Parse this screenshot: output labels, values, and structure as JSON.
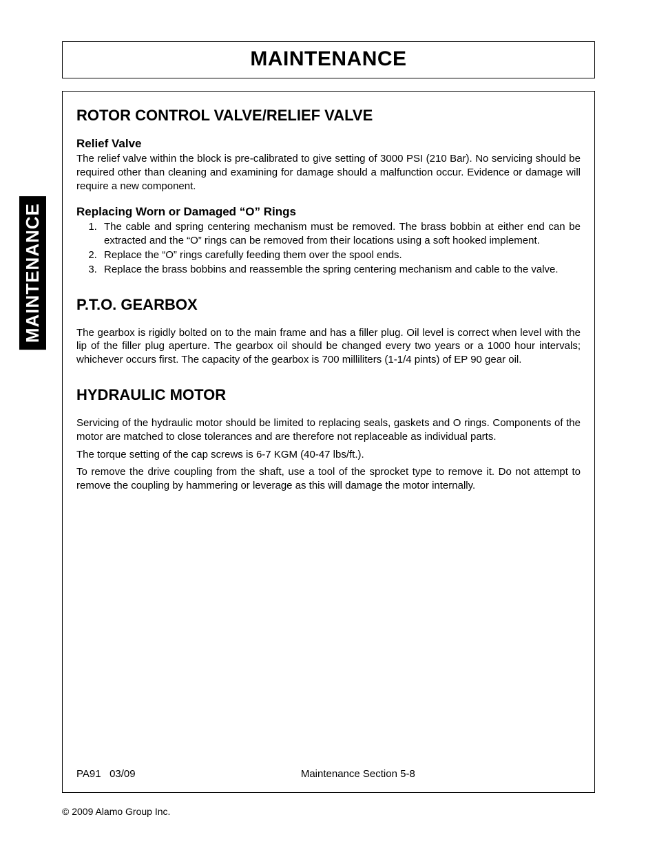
{
  "page_title": "MAINTENANCE",
  "side_tab": "MAINTENANCE",
  "sections": {
    "rotor": {
      "heading": "ROTOR CONTROL VALVE/RELIEF VALVE",
      "relief": {
        "heading": "Relief Valve",
        "text": "The relief valve within the block is pre-calibrated to give setting of 3000 PSI (210 Bar). No servicing should be required other than cleaning and examining for damage should a malfunction occur. Evidence or damage will require a new component."
      },
      "orings": {
        "heading": "Replacing Worn or Damaged “O” Rings",
        "steps": [
          "The cable and spring centering mechanism must be removed. The brass bobbin at either end can be extracted and the “O” rings can be removed from their locations using a soft hooked implement.",
          "Replace the “O” rings carefully feeding them over the spool ends.",
          "Replace the brass bobbins and reassemble the spring centering mechanism and cable to the valve."
        ]
      }
    },
    "pto": {
      "heading": "P.T.O. GEARBOX",
      "text": "The gearbox is rigidly bolted on to the main frame and has a filler plug. Oil level is correct when level with the lip of the filler plug aperture. The gearbox oil should be changed every two years or a 1000 hour intervals; whichever occurs first. The capacity of the gearbox is 700 milliliters (1-1/4 pints) of EP 90 gear oil."
    },
    "motor": {
      "heading": "HYDRAULIC MOTOR",
      "p1": "Servicing of the hydraulic motor should be limited to replacing seals, gaskets and O rings. Components of the motor are matched to close tolerances and are therefore not replaceable as individual parts.",
      "p2": "The torque setting of the cap screws is 6-7 KGM (40-47 lbs/ft.).",
      "p3": "To remove the drive coupling from the shaft, use a tool of the sprocket type to remove it. Do not attempt to remove the coupling by hammering or leverage as this will damage the motor internally."
    }
  },
  "footer": {
    "left": "PA91   03/09",
    "center": "Maintenance Section 5-8",
    "copyright": "© 2009 Alamo Group Inc."
  },
  "style": {
    "page_bg": "#ffffff",
    "text_color": "#000000",
    "tab_bg": "#000000",
    "tab_fg": "#ffffff",
    "title_fontsize": 30,
    "h1_fontsize": 22,
    "h2_fontsize": 17,
    "body_fontsize": 15,
    "line_height": 1.32
  }
}
